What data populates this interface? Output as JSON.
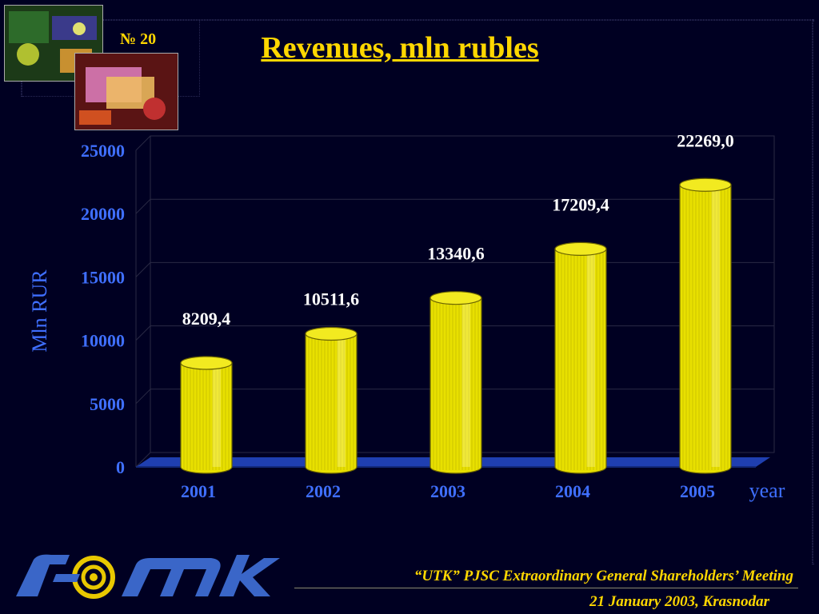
{
  "slide": {
    "number": "№ 20",
    "title": "Revenues, mln rubles"
  },
  "footer": {
    "meeting": "“UTK” PJSC Extraordinary General Shareholders’ Meeting",
    "date": "21 January 2003, Krasnodar",
    "logo_text": "ютк"
  },
  "chart_data": {
    "type": "bar",
    "title": "Revenues, mln rubles",
    "ylabel": "Mln RUR",
    "xlabel": "year",
    "categories": [
      "2001",
      "2002",
      "2003",
      "2004",
      "2005"
    ],
    "values": [
      8209.4,
      10511.6,
      13340.6,
      17209.4,
      22269.0
    ],
    "value_labels": [
      "8209,4",
      "10511,6",
      "13340,6",
      "17209,4",
      "22269,0"
    ],
    "yticks": [
      0,
      5000,
      10000,
      15000,
      20000,
      25000
    ],
    "ylim": [
      0,
      25000
    ],
    "grid": true,
    "bar_style": "3d-cylinder",
    "colors": {
      "bar": "#e8e000",
      "floor": "#1f3fb0",
      "axis_text": "#3f6fff",
      "value_text": "#ffffff",
      "title": "#ffd700"
    }
  }
}
